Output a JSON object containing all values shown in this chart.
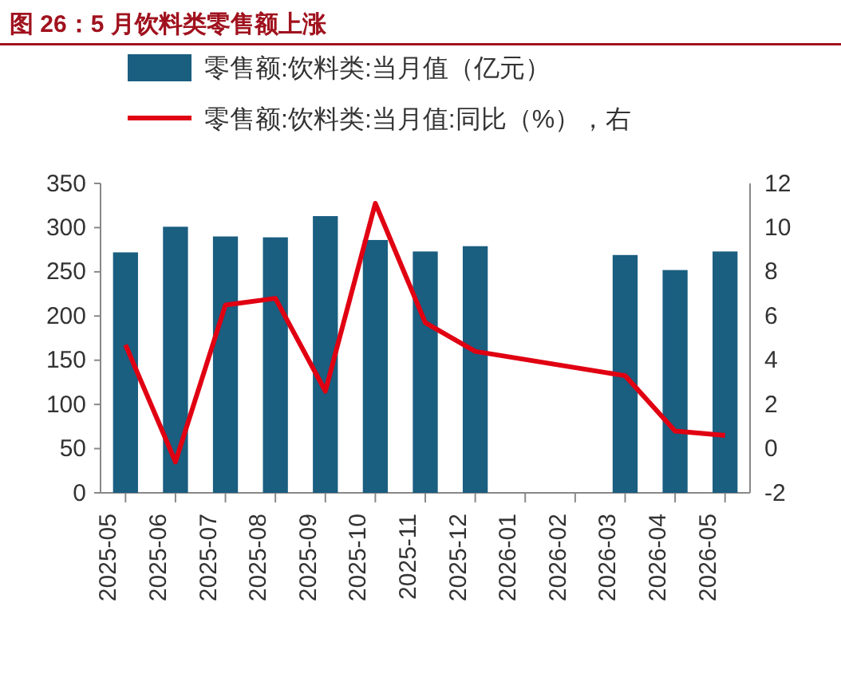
{
  "chart_data": {
    "type": "bar",
    "title": "图 26：5 月饮料类零售额上涨",
    "categories": [
      "2025-05",
      "2025-06",
      "2025-07",
      "2025-08",
      "2025-09",
      "2025-10",
      "2025-11",
      "2025-12",
      "2026-01",
      "2026-02",
      "2026-03",
      "2026-04",
      "2026-05"
    ],
    "series": [
      {
        "name": "零售额:饮料类:当月值（亿元）",
        "color": "#1a5e80",
        "values": [
          272,
          301,
          290,
          289,
          313,
          286,
          273,
          279,
          null,
          null,
          269,
          252,
          273
        ]
      },
      {
        "name": "零售额:饮料类:当月值:同比（%），右",
        "type": "line",
        "axis": "y2",
        "color": "#e00012",
        "values": [
          4.7,
          -0.6,
          6.5,
          6.8,
          2.6,
          11.1,
          5.7,
          4.4,
          null,
          null,
          3.3,
          0.8,
          0.6
        ]
      }
    ],
    "ylim": [
      0,
      350
    ],
    "yticks": [
      0,
      50,
      100,
      150,
      200,
      250,
      300,
      350
    ],
    "y2lim": [
      -2,
      12
    ],
    "y2ticks": [
      -2,
      0,
      2,
      4,
      6,
      8,
      10,
      12
    ],
    "legend": "top",
    "grid": false,
    "marker": "none",
    "line_style": "solid"
  }
}
